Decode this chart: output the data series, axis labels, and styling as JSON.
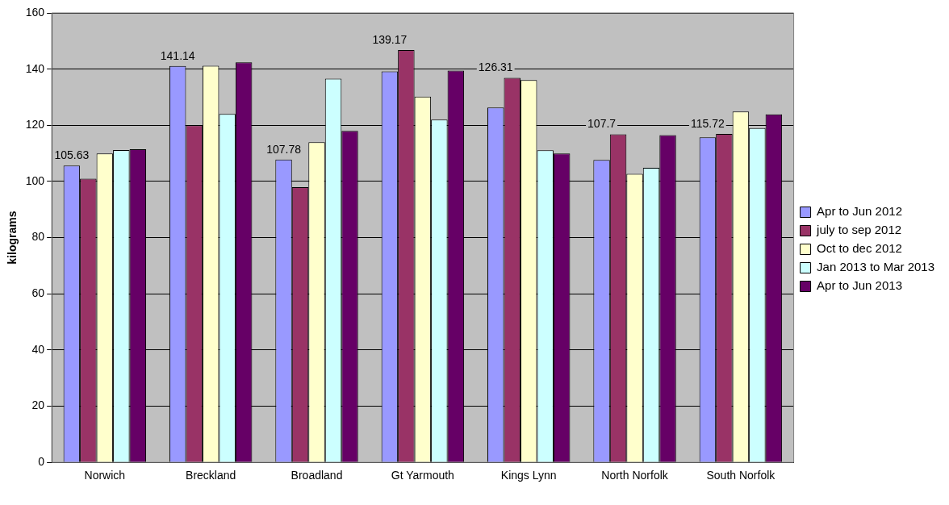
{
  "chart_data": {
    "type": "bar",
    "ylabel": "kilograms",
    "categories": [
      "Norwich",
      "Breckland",
      "Broadland",
      "Gt Yarmouth",
      "Kings Lynn",
      "North Norfolk",
      "South Norfolk"
    ],
    "series": [
      {
        "name": "Apr to Jun 2012",
        "color": "#9999ff",
        "values": [
          105.63,
          141.14,
          107.78,
          139.17,
          126.31,
          107.7,
          115.72
        ],
        "value_labels": [
          "105.63",
          "141.14",
          "107.78",
          "139.17",
          "126.31",
          "107.7",
          "115.72"
        ]
      },
      {
        "name": "july to sep 2012",
        "color": "#993366",
        "values": [
          101,
          120,
          98,
          146.8,
          136.9,
          116.8,
          116.9
        ]
      },
      {
        "name": "Oct to dec 2012",
        "color": "#ffffcc",
        "values": [
          110,
          141.2,
          114,
          130.2,
          136.1,
          102.7,
          124.9
        ]
      },
      {
        "name": "Jan 2013 to Mar 2013",
        "color": "#ccffff",
        "values": [
          111.2,
          124,
          136.6,
          122,
          111.1,
          104.9,
          119
        ]
      },
      {
        "name": "Apr to Jun 2013",
        "color": "#660066",
        "values": [
          111.5,
          142.4,
          118,
          139.5,
          110,
          116.5,
          123.9
        ]
      }
    ],
    "ylim": [
      0,
      160
    ],
    "yticks": [
      0,
      20,
      40,
      60,
      80,
      100,
      120,
      140,
      160
    ],
    "grid": "y",
    "legend": "right"
  }
}
